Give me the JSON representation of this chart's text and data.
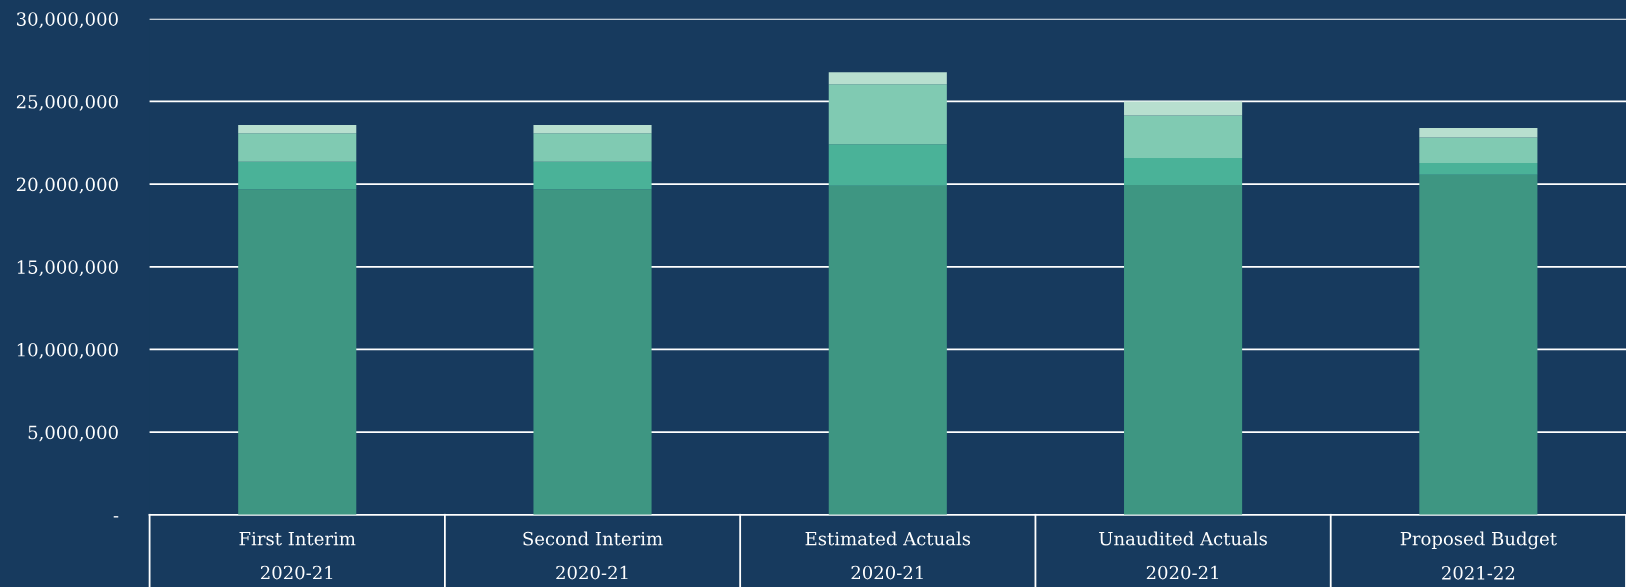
{
  "chart_data": {
    "type": "bar",
    "stacked": true,
    "categories": [
      "First Interim\n2020-21",
      "Second Interim\n2020-21",
      "Estimated Actuals\n2020-21",
      "Unaudited Actuals\n2020-21",
      "Proposed Budget\n2021-22"
    ],
    "series": [
      {
        "color": "#3e9682",
        "values": [
          19680000,
          19680000,
          19900000,
          19940000,
          20570000
        ]
      },
      {
        "color": "#4ab298",
        "values": [
          1680000,
          1680000,
          2510000,
          1640000,
          700000
        ]
      },
      {
        "color": "#80cab2",
        "values": [
          1710000,
          1710000,
          3630000,
          2570000,
          1550000
        ]
      },
      {
        "color": "#b8dfcf",
        "values": [
          510000,
          510000,
          730000,
          850000,
          570000
        ]
      }
    ],
    "ylim": [
      0,
      30000000
    ],
    "yticks": [
      {
        "value": 0,
        "label": "-"
      },
      {
        "value": 5000000,
        "label": "5,000,000"
      },
      {
        "value": 10000000,
        "label": "10,000,000"
      },
      {
        "value": 15000000,
        "label": "15,000,000"
      },
      {
        "value": 20000000,
        "label": "20,000,000"
      },
      {
        "value": 25000000,
        "label": "25,000,000"
      },
      {
        "value": 30000000,
        "label": "30,000,000"
      }
    ],
    "grid": "y"
  }
}
